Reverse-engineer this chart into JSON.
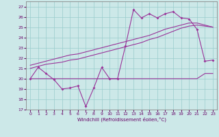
{
  "xlabel": "Windchill (Refroidissement éolien,°C)",
  "background_color": "#cce8e8",
  "grid_color": "#99cccc",
  "line_color": "#993399",
  "xlim": [
    -0.5,
    23.5
  ],
  "ylim": [
    17,
    27.5
  ],
  "yticks": [
    17,
    18,
    19,
    20,
    21,
    22,
    23,
    24,
    25,
    26,
    27
  ],
  "xticks": [
    0,
    1,
    2,
    3,
    4,
    5,
    6,
    7,
    8,
    9,
    10,
    11,
    12,
    13,
    14,
    15,
    16,
    17,
    18,
    19,
    20,
    21,
    22,
    23
  ],
  "hours": [
    0,
    1,
    2,
    3,
    4,
    5,
    6,
    7,
    8,
    9,
    10,
    11,
    12,
    13,
    14,
    15,
    16,
    17,
    18,
    19,
    20,
    21,
    22,
    23
  ],
  "temp": [
    20.0,
    21.1,
    20.5,
    19.9,
    19.0,
    19.1,
    19.3,
    17.3,
    19.1,
    21.1,
    20.0,
    20.0,
    23.2,
    26.7,
    25.9,
    26.3,
    25.9,
    26.3,
    26.5,
    25.9,
    25.8,
    24.8,
    21.7,
    21.8
  ],
  "reg_line1": [
    21.0,
    21.2,
    21.4,
    21.5,
    21.6,
    21.8,
    21.9,
    22.1,
    22.3,
    22.5,
    22.7,
    22.9,
    23.1,
    23.3,
    23.5,
    23.8,
    24.0,
    24.3,
    24.6,
    24.9,
    25.1,
    25.2,
    25.1,
    25.0
  ],
  "reg_line2": [
    21.3,
    21.5,
    21.7,
    21.9,
    22.1,
    22.3,
    22.4,
    22.6,
    22.8,
    23.0,
    23.2,
    23.4,
    23.6,
    23.8,
    24.0,
    24.2,
    24.5,
    24.8,
    25.0,
    25.2,
    25.4,
    25.4,
    25.2,
    25.0
  ],
  "min_line": [
    20.0,
    20.0,
    20.0,
    20.0,
    20.0,
    20.0,
    20.0,
    20.0,
    20.0,
    20.0,
    20.0,
    20.0,
    20.0,
    20.0,
    20.0,
    20.0,
    20.0,
    20.0,
    20.0,
    20.0,
    20.0,
    20.0,
    20.5,
    20.5
  ]
}
